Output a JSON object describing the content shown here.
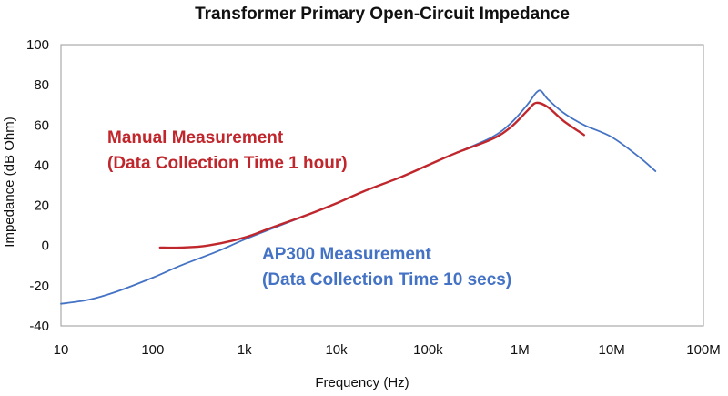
{
  "chart_data": {
    "type": "line",
    "title": "Transformer Primary Open-Circuit Impedance",
    "xlabel": "Frequency (Hz)",
    "ylabel": "Impedance (dB Ohm)",
    "x_scale": "log",
    "xlim": [
      10,
      100000000
    ],
    "ylim": [
      -40,
      100
    ],
    "x_ticks": [
      10,
      100,
      1000,
      10000,
      100000,
      1000000,
      10000000,
      100000000
    ],
    "x_tick_labels": [
      "10",
      "100",
      "1k",
      "10k",
      "100k",
      "1M",
      "10M",
      "100M"
    ],
    "y_ticks": [
      -40,
      -20,
      0,
      20,
      40,
      60,
      80,
      100
    ],
    "y_tick_labels": [
      "-40",
      "-20",
      "0",
      "20",
      "40",
      "60",
      "80",
      "100"
    ],
    "grid": false,
    "series": [
      {
        "color": "#4472c4",
        "x": [
          10,
          20,
          40,
          100,
          200,
          500,
          1000,
          2000,
          5000,
          10000,
          20000,
          50000,
          100000,
          200000,
          500000,
          800000,
          1200000,
          1500000,
          1700000,
          2000000,
          3000000,
          5000000,
          10000000,
          20000000,
          30000000
        ],
        "y": [
          -29,
          -27,
          -23,
          -16,
          -10,
          -3,
          3,
          8.5,
          15.5,
          21,
          27,
          34,
          40,
          46,
          54,
          61,
          70,
          76,
          77,
          73,
          66,
          60,
          54,
          44,
          37
        ]
      },
      {
        "color": "#c0272d",
        "x": [
          120,
          200,
          400,
          1000,
          2000,
          5000,
          10000,
          20000,
          50000,
          100000,
          200000,
          500000,
          800000,
          1200000,
          1500000,
          2000000,
          3000000,
          5000000
        ],
        "y": [
          -1,
          -1,
          0,
          4,
          9,
          15.5,
          21,
          27,
          34,
          40,
          46,
          53,
          59,
          67,
          71,
          69,
          62,
          55
        ]
      }
    ],
    "annotations": [
      {
        "lines": [
          "Manual Measurement",
          "(Data Collection Time 1 hour)"
        ],
        "color": "#c0272d"
      },
      {
        "lines": [
          "AP300 Measurement",
          "(Data Collection Time 10 secs)"
        ],
        "color": "#4472c4"
      }
    ]
  }
}
